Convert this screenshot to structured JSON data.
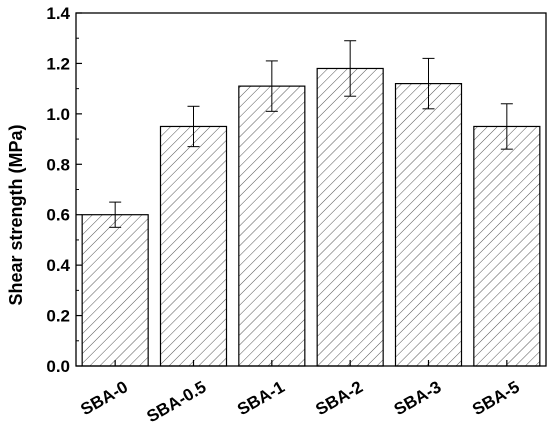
{
  "chart_data": {
    "type": "bar",
    "title": "",
    "xlabel": "",
    "ylabel": "Shear strength (MPa)",
    "ylim": [
      0.0,
      1.4
    ],
    "yticks": [
      "0.0",
      "0.2",
      "0.4",
      "0.6",
      "0.8",
      "1.0",
      "1.2",
      "1.4"
    ],
    "grid": false,
    "categories": [
      "SBA-0",
      "SBA-0.5",
      "SBA-1",
      "SBA-2",
      "SBA-3",
      "SBA-5"
    ],
    "values": [
      0.6,
      0.95,
      1.11,
      1.18,
      1.12,
      0.95
    ],
    "errors": [
      0.05,
      0.08,
      0.1,
      0.11,
      0.1,
      0.09
    ],
    "bar_fill": "diagonal-hatch",
    "colors": {
      "bar_stroke": "#000000",
      "hatch": "#555555",
      "axis": "#000000"
    }
  }
}
